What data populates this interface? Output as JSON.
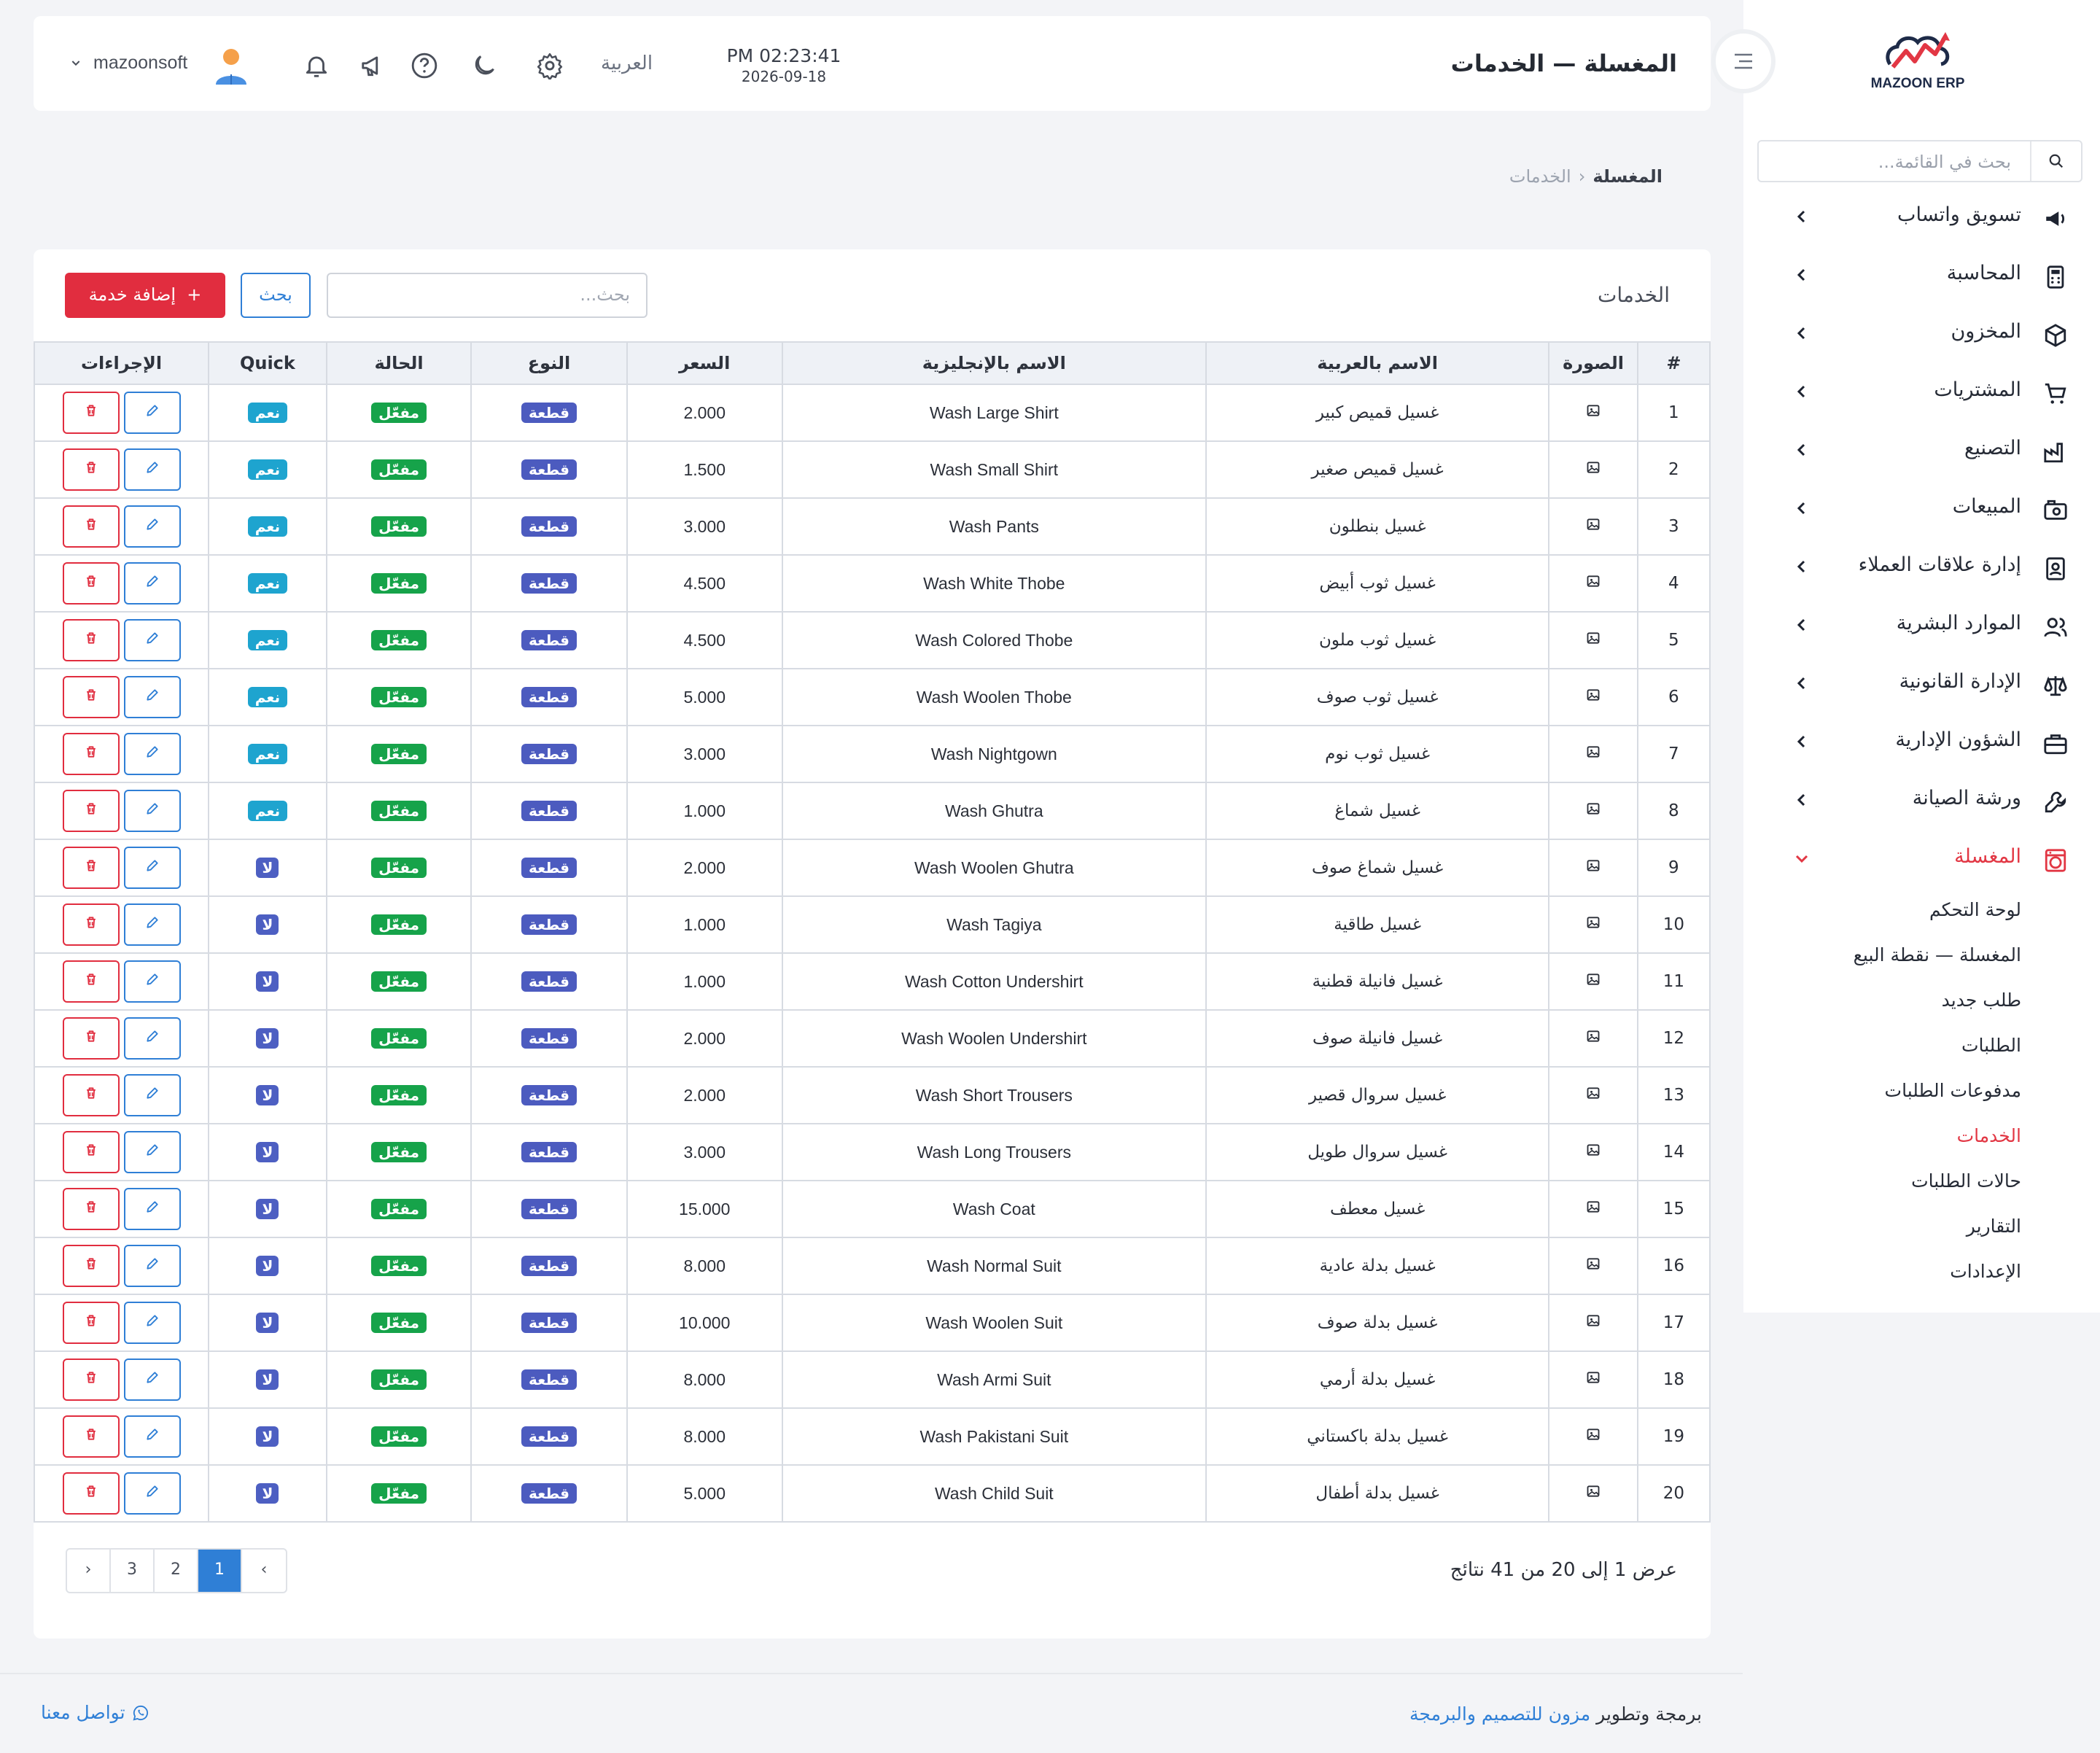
{
  "app": {
    "brand": "MAZOON ERP",
    "page_title": "المغسلة — الخدمات"
  },
  "header": {
    "time": "PM 02:23:41",
    "date": "2026-09-18",
    "language": "العربية",
    "user": "mazoonsoft"
  },
  "sidebar": {
    "search_placeholder": "بحث في القائمة...",
    "items": [
      {
        "label": "تسويق واتساب",
        "icon": "megaphone-icon"
      },
      {
        "label": "المحاسبة",
        "icon": "calculator-icon"
      },
      {
        "label": "المخزون",
        "icon": "box-icon"
      },
      {
        "label": "المشتريات",
        "icon": "cart-icon"
      },
      {
        "label": "التصنيع",
        "icon": "factory-icon"
      },
      {
        "label": "المبيعات",
        "icon": "register-icon"
      },
      {
        "label": "إدارة علاقات العملاء",
        "icon": "contacts-icon"
      },
      {
        "label": "الموارد البشرية",
        "icon": "users-icon"
      },
      {
        "label": "الإدارة القانونية",
        "icon": "scale-icon"
      },
      {
        "label": "الشؤون الإدارية",
        "icon": "briefcase-icon"
      },
      {
        "label": "ورشة الصيانة",
        "icon": "wrench-icon"
      },
      {
        "label": "المغسلة",
        "icon": "washer-icon",
        "active": true
      }
    ],
    "subitems": [
      {
        "label": "لوحة التحكم"
      },
      {
        "label": "المغسلة — نقطة البيع"
      },
      {
        "label": "طلب جديد"
      },
      {
        "label": "الطلبات"
      },
      {
        "label": "مدفوعات الطلبات"
      },
      {
        "label": "الخدمات",
        "active": true
      },
      {
        "label": "حالات الطلبات"
      },
      {
        "label": "التقارير"
      },
      {
        "label": "الإعدادات"
      }
    ]
  },
  "breadcrumb": {
    "parent": "المغسلة",
    "current": "الخدمات"
  },
  "card": {
    "title": "الخدمات",
    "search_placeholder": "بحث...",
    "search_button": "بحث",
    "add_button": "إضافة خدمة"
  },
  "table": {
    "headers": [
      "#",
      "الصورة",
      "الاسم بالعربية",
      "الاسم بالإنجليزية",
      "السعر",
      "النوع",
      "الحالة",
      "Quick",
      "الإجراءات"
    ],
    "rows": [
      {
        "n": "1",
        "ar": "غسيل قميص كبير",
        "en": "Wash Large Shirt",
        "price": "2.000",
        "type": "قطعة",
        "status": "مفعّل",
        "quick": "نعم"
      },
      {
        "n": "2",
        "ar": "غسيل قميص صغير",
        "en": "Wash Small Shirt",
        "price": "1.500",
        "type": "قطعة",
        "status": "مفعّل",
        "quick": "نعم"
      },
      {
        "n": "3",
        "ar": "غسيل بنطلون",
        "en": "Wash Pants",
        "price": "3.000",
        "type": "قطعة",
        "status": "مفعّل",
        "quick": "نعم"
      },
      {
        "n": "4",
        "ar": "غسيل ثوب أبيض",
        "en": "Wash White Thobe",
        "price": "4.500",
        "type": "قطعة",
        "status": "مفعّل",
        "quick": "نعم"
      },
      {
        "n": "5",
        "ar": "غسيل ثوب ملون",
        "en": "Wash Colored Thobe",
        "price": "4.500",
        "type": "قطعة",
        "status": "مفعّل",
        "quick": "نعم"
      },
      {
        "n": "6",
        "ar": "غسيل ثوب صوف",
        "en": "Wash Woolen Thobe",
        "price": "5.000",
        "type": "قطعة",
        "status": "مفعّل",
        "quick": "نعم"
      },
      {
        "n": "7",
        "ar": "غسيل ثوب نوم",
        "en": "Wash Nightgown",
        "price": "3.000",
        "type": "قطعة",
        "status": "مفعّل",
        "quick": "نعم"
      },
      {
        "n": "8",
        "ar": "غسيل شماغ",
        "en": "Wash Ghutra",
        "price": "1.000",
        "type": "قطعة",
        "status": "مفعّل",
        "quick": "نعم"
      },
      {
        "n": "9",
        "ar": "غسيل شماغ صوف",
        "en": "Wash Woolen Ghutra",
        "price": "2.000",
        "type": "قطعة",
        "status": "مفعّل",
        "quick": "لا"
      },
      {
        "n": "10",
        "ar": "غسيل طاقية",
        "en": "Wash Tagiya",
        "price": "1.000",
        "type": "قطعة",
        "status": "مفعّل",
        "quick": "لا"
      },
      {
        "n": "11",
        "ar": "غسيل فانيلة قطنية",
        "en": "Wash Cotton Undershirt",
        "price": "1.000",
        "type": "قطعة",
        "status": "مفعّل",
        "quick": "لا"
      },
      {
        "n": "12",
        "ar": "غسيل فانيلة صوف",
        "en": "Wash Woolen Undershirt",
        "price": "2.000",
        "type": "قطعة",
        "status": "مفعّل",
        "quick": "لا"
      },
      {
        "n": "13",
        "ar": "غسيل سروال قصير",
        "en": "Wash Short Trousers",
        "price": "2.000",
        "type": "قطعة",
        "status": "مفعّل",
        "quick": "لا"
      },
      {
        "n": "14",
        "ar": "غسيل سروال طويل",
        "en": "Wash Long Trousers",
        "price": "3.000",
        "type": "قطعة",
        "status": "مفعّل",
        "quick": "لا"
      },
      {
        "n": "15",
        "ar": "غسيل معطف",
        "en": "Wash Coat",
        "price": "15.000",
        "type": "قطعة",
        "status": "مفعّل",
        "quick": "لا"
      },
      {
        "n": "16",
        "ar": "غسيل بدلة عادية",
        "en": "Wash Normal Suit",
        "price": "8.000",
        "type": "قطعة",
        "status": "مفعّل",
        "quick": "لا"
      },
      {
        "n": "17",
        "ar": "غسيل بدلة صوف",
        "en": "Wash Woolen Suit",
        "price": "10.000",
        "type": "قطعة",
        "status": "مفعّل",
        "quick": "لا"
      },
      {
        "n": "18",
        "ar": "غسيل بدلة أرمي",
        "en": "Wash Armi Suit",
        "price": "8.000",
        "type": "قطعة",
        "status": "مفعّل",
        "quick": "لا"
      },
      {
        "n": "19",
        "ar": "غسيل بدلة باكستاني",
        "en": "Wash Pakistani Suit",
        "price": "8.000",
        "type": "قطعة",
        "status": "مفعّل",
        "quick": "لا"
      },
      {
        "n": "20",
        "ar": "غسيل بدلة أطفال",
        "en": "Wash Child Suit",
        "price": "5.000",
        "type": "قطعة",
        "status": "مفعّل",
        "quick": "لا"
      }
    ]
  },
  "pagination": {
    "summary": "عرض 1 إلى 20 من 41 نتائج",
    "prev": "‹",
    "pages": [
      "1",
      "2",
      "3"
    ],
    "current": "1",
    "next": "›"
  },
  "footer": {
    "text": "برمجة وتطوير",
    "company": "مزون للتصميم والبرمجة",
    "contact": "تواصل معنا"
  },
  "colors": {
    "primary": "#2f7fd6",
    "danger": "#e12d3f",
    "success": "#16a34a",
    "info": "#1ea4cf",
    "indigo": "#4c5bbf"
  }
}
